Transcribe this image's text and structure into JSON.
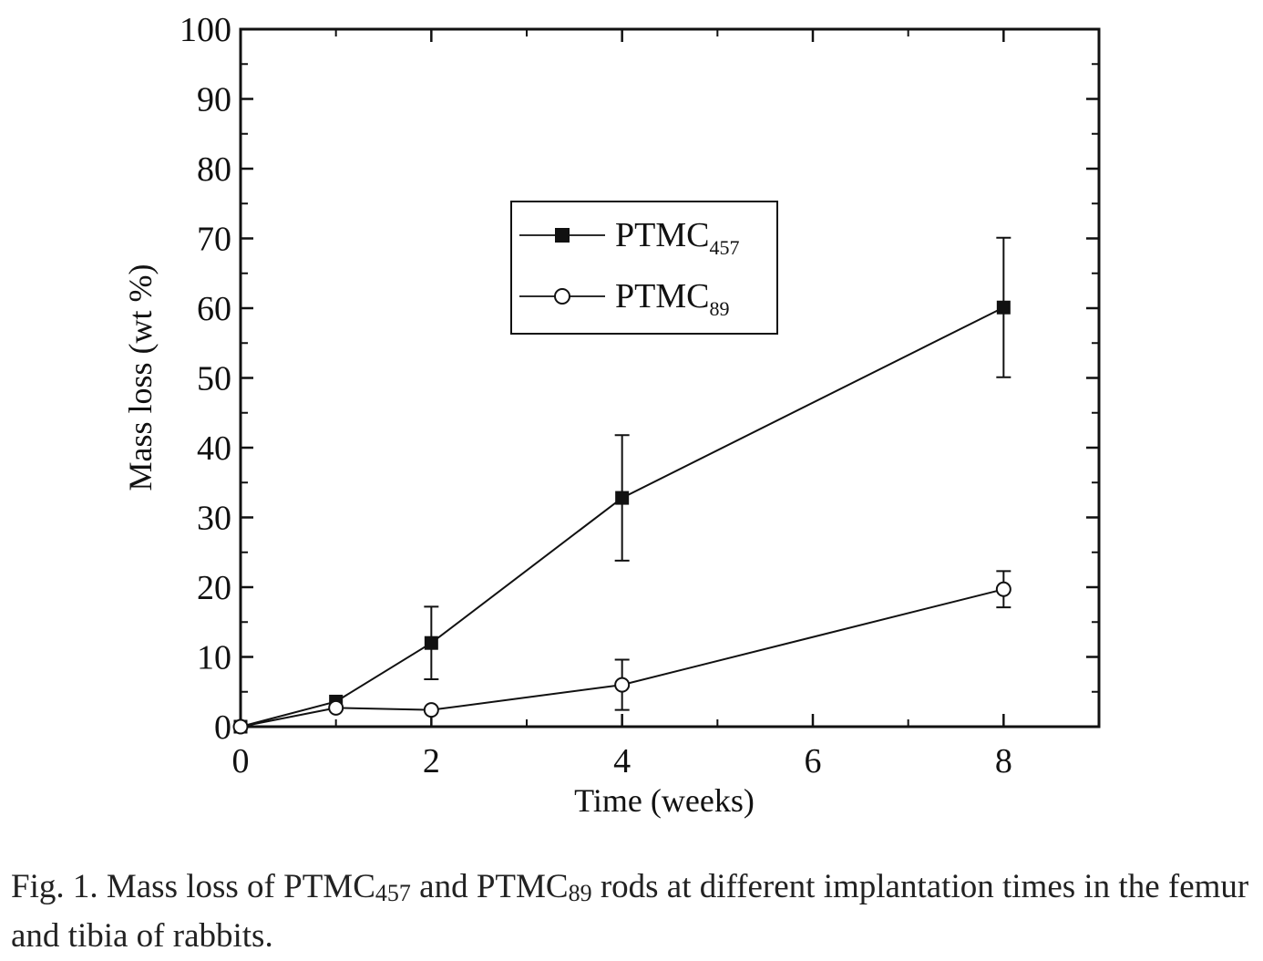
{
  "chart_data": {
    "type": "line",
    "xlabel": "Time (weeks)",
    "ylabel": "Mass loss (wt %)",
    "xlim": [
      0,
      9
    ],
    "ylim": [
      0,
      100
    ],
    "xticks": [
      0,
      2,
      4,
      6,
      8
    ],
    "yticks": [
      0,
      10,
      20,
      30,
      40,
      50,
      60,
      70,
      80,
      90,
      100
    ],
    "grid": false,
    "legend_position": "top-center",
    "series": [
      {
        "name_base": "PTMC",
        "name_sub": "457",
        "marker": "filled-square",
        "color": "#111111",
        "x": [
          0,
          1,
          2,
          4,
          8
        ],
        "y": [
          0,
          3.6,
          12,
          32.8,
          60.1
        ],
        "yerr": [
          0,
          0,
          5.2,
          9,
          10
        ]
      },
      {
        "name_base": "PTMC",
        "name_sub": "89",
        "marker": "open-circle",
        "color": "#111111",
        "x": [
          0,
          1,
          2,
          4,
          8
        ],
        "y": [
          0,
          2.7,
          2.4,
          6,
          19.7
        ],
        "yerr": [
          0,
          0,
          0,
          3.6,
          2.6
        ]
      }
    ]
  },
  "caption": {
    "part1": "Fig. 1.  Mass loss of PTMC",
    "sub1": "457",
    "part2": " and PTMC",
    "sub2": "89",
    "part3": " rods at different implantation times in the femur and tibia of rabbits."
  }
}
